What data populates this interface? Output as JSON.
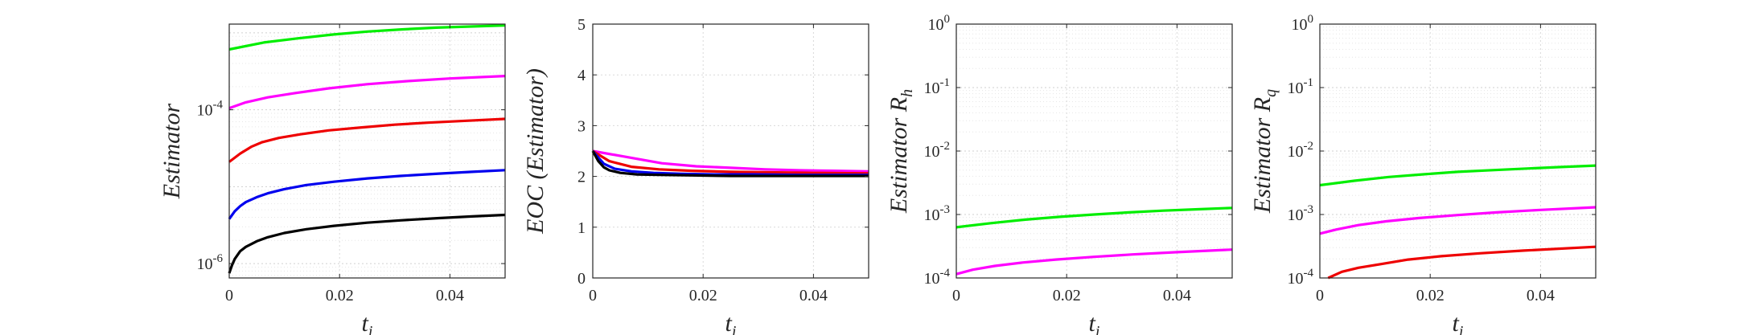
{
  "chart_data": [
    {
      "type": "line",
      "ylabel": "Estimator",
      "xlabel": "t",
      "xlabel_sub": "i",
      "xlim": [
        0,
        0.05
      ],
      "ylim": [
        6.5e-07,
        0.0013
      ],
      "yscale": "log",
      "xticks": [
        0,
        0.02,
        0.04
      ],
      "xtick_labels": [
        "0",
        "0.02",
        "0.04"
      ],
      "yticks": [
        1e-06,
        0.0001
      ],
      "ytick_labels": [
        {
          "base": "10",
          "exp": "-6"
        },
        {
          "base": "10",
          "exp": "-4"
        }
      ],
      "grid": true,
      "series": [
        {
          "color": "#00ee00",
          "x": [
            0,
            0.00625,
            0.0125,
            0.01875,
            0.025,
            0.03125,
            0.0375,
            0.04375,
            0.05
          ],
          "y": [
            0.00061,
            0.00075,
            0.00085,
            0.00095,
            0.00104,
            0.00111,
            0.00117,
            0.00121,
            0.00125
          ]
        },
        {
          "color": "#ff00ff",
          "x": [
            0,
            0.003,
            0.007,
            0.012,
            0.018,
            0.025,
            0.032,
            0.04,
            0.05
          ],
          "y": [
            0.000105,
            0.000125,
            0.000145,
            0.000165,
            0.00019,
            0.000215,
            0.000235,
            0.000255,
            0.000275
          ]
        },
        {
          "color": "#ee0000",
          "x": [
            0,
            0.002,
            0.004,
            0.006,
            0.009,
            0.013,
            0.018,
            0.024,
            0.03,
            0.036,
            0.043,
            0.05
          ],
          "y": [
            2.1e-05,
            2.7e-05,
            3.3e-05,
            3.8e-05,
            4.3e-05,
            4.8e-05,
            5.4e-05,
            5.9e-05,
            6.4e-05,
            6.8e-05,
            7.2e-05,
            7.6e-05
          ]
        },
        {
          "color": "#0000ee",
          "x": [
            0,
            0.001,
            0.002,
            0.003,
            0.005,
            0.007,
            0.01,
            0.014,
            0.019,
            0.025,
            0.031,
            0.038,
            0.044,
            0.05
          ],
          "y": [
            3.8e-06,
            4.8e-06,
            5.6e-06,
            6.3e-06,
            7.3e-06,
            8.2e-06,
            9.3e-06,
            1.05e-05,
            1.16e-05,
            1.28e-05,
            1.38e-05,
            1.48e-05,
            1.56e-05,
            1.64e-05
          ]
        },
        {
          "color": "#000000",
          "x": [
            0,
            0.0005,
            0.001,
            0.002,
            0.003,
            0.005,
            0.007,
            0.01,
            0.014,
            0.019,
            0.025,
            0.031,
            0.038,
            0.044,
            0.05
          ],
          "y": [
            7.5e-07,
            9.5e-07,
            1.15e-06,
            1.45e-06,
            1.65e-06,
            1.95e-06,
            2.2e-06,
            2.5e-06,
            2.8e-06,
            3.1e-06,
            3.4e-06,
            3.65e-06,
            3.9e-06,
            4.1e-06,
            4.3e-06
          ]
        }
      ]
    },
    {
      "type": "line",
      "ylabel": "EOC (Estimator)",
      "xlabel": "t",
      "xlabel_sub": "i",
      "xlim": [
        0,
        0.05
      ],
      "ylim": [
        0,
        5
      ],
      "yscale": "linear",
      "xticks": [
        0,
        0.02,
        0.04
      ],
      "xtick_labels": [
        "0",
        "0.02",
        "0.04"
      ],
      "yticks": [
        0,
        1,
        2,
        3,
        4,
        5
      ],
      "ytick_labels": [
        "0",
        "1",
        "2",
        "3",
        "4",
        "5"
      ],
      "grid": true,
      "series": [
        {
          "color": "#ff00ff",
          "x": [
            0,
            0.00625,
            0.0125,
            0.01875,
            0.025,
            0.03125,
            0.0375,
            0.04375,
            0.05
          ],
          "y": [
            2.5,
            2.38,
            2.26,
            2.2,
            2.17,
            2.14,
            2.12,
            2.11,
            2.1
          ]
        },
        {
          "color": "#ee0000",
          "x": [
            0,
            0.003,
            0.007,
            0.012,
            0.018,
            0.025,
            0.032,
            0.04,
            0.05
          ],
          "y": [
            2.5,
            2.3,
            2.19,
            2.14,
            2.11,
            2.09,
            2.08,
            2.07,
            2.06
          ]
        },
        {
          "color": "#0000ee",
          "x": [
            0,
            0.002,
            0.004,
            0.007,
            0.011,
            0.016,
            0.022,
            0.029,
            0.037,
            0.05
          ],
          "y": [
            2.5,
            2.25,
            2.15,
            2.1,
            2.07,
            2.05,
            2.04,
            2.04,
            2.03,
            2.03
          ]
        },
        {
          "color": "#000000",
          "x": [
            0,
            0.001,
            0.002,
            0.003,
            0.005,
            0.008,
            0.012,
            0.018,
            0.025,
            0.035,
            0.05
          ],
          "y": [
            2.5,
            2.3,
            2.18,
            2.12,
            2.07,
            2.04,
            2.03,
            2.02,
            2.01,
            2.01,
            2.01
          ]
        }
      ]
    },
    {
      "type": "line",
      "ylabel": "Estimator R",
      "ylabel_sub": "h",
      "xlabel": "t",
      "xlabel_sub": "i",
      "xlim": [
        0,
        0.05
      ],
      "ylim": [
        0.0001,
        1
      ],
      "yscale": "log",
      "xticks": [
        0,
        0.02,
        0.04
      ],
      "xtick_labels": [
        "0",
        "0.02",
        "0.04"
      ],
      "yticks": [
        0.0001,
        0.001,
        0.01,
        0.1,
        1
      ],
      "ytick_labels": [
        {
          "base": "10",
          "exp": "-4"
        },
        {
          "base": "10",
          "exp": "-3"
        },
        {
          "base": "10",
          "exp": "-2"
        },
        {
          "base": "10",
          "exp": "-1"
        },
        {
          "base": "10",
          "exp": "0"
        }
      ],
      "grid": true,
      "series": [
        {
          "color": "#00ee00",
          "x": [
            0,
            0.00625,
            0.0125,
            0.01875,
            0.025,
            0.03125,
            0.0375,
            0.04375,
            0.05
          ],
          "y": [
            0.00063,
            0.00073,
            0.00083,
            0.00092,
            0.001,
            0.00108,
            0.00115,
            0.00121,
            0.00127
          ]
        },
        {
          "color": "#ff00ff",
          "x": [
            0,
            0.003,
            0.007,
            0.012,
            0.018,
            0.025,
            0.032,
            0.04,
            0.05
          ],
          "y": [
            0.000115,
            0.000135,
            0.000155,
            0.000175,
            0.000195,
            0.000215,
            0.000235,
            0.000255,
            0.00028
          ]
        }
      ]
    },
    {
      "type": "line",
      "ylabel": "Estimator R",
      "ylabel_sub": "q",
      "xlabel": "t",
      "xlabel_sub": "i",
      "xlim": [
        0,
        0.05
      ],
      "ylim": [
        0.0001,
        1
      ],
      "yscale": "log",
      "xticks": [
        0,
        0.02,
        0.04
      ],
      "xtick_labels": [
        "0",
        "0.02",
        "0.04"
      ],
      "yticks": [
        0.0001,
        0.001,
        0.01,
        0.1,
        1
      ],
      "ytick_labels": [
        {
          "base": "10",
          "exp": "-4"
        },
        {
          "base": "10",
          "exp": "-3"
        },
        {
          "base": "10",
          "exp": "-2"
        },
        {
          "base": "10",
          "exp": "-1"
        },
        {
          "base": "10",
          "exp": "0"
        }
      ],
      "grid": true,
      "series": [
        {
          "color": "#00ee00",
          "x": [
            0,
            0.00625,
            0.0125,
            0.01875,
            0.025,
            0.03125,
            0.0375,
            0.04375,
            0.05
          ],
          "y": [
            0.0029,
            0.0034,
            0.0039,
            0.0043,
            0.0047,
            0.005,
            0.0053,
            0.0056,
            0.0059
          ]
        },
        {
          "color": "#ff00ff",
          "x": [
            0,
            0.003,
            0.007,
            0.012,
            0.018,
            0.025,
            0.032,
            0.04,
            0.05
          ],
          "y": [
            0.0005,
            0.00058,
            0.00068,
            0.00078,
            0.00088,
            0.00098,
            0.00108,
            0.00118,
            0.0013
          ]
        },
        {
          "color": "#ee0000",
          "x": [
            0.0015,
            0.004,
            0.007,
            0.011,
            0.016,
            0.022,
            0.029,
            0.037,
            0.05
          ],
          "y": [
            0.0001,
            0.000125,
            0.000145,
            0.000165,
            0.000195,
            0.00022,
            0.000245,
            0.00027,
            0.00031
          ]
        }
      ]
    }
  ]
}
